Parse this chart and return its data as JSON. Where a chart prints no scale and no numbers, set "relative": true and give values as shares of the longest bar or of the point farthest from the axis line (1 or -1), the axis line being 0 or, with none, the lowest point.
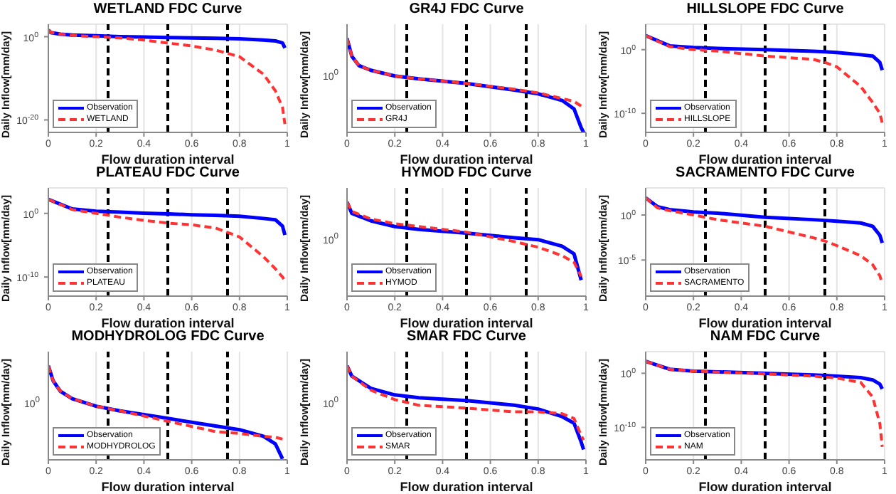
{
  "chart_data": [
    {
      "type": "line",
      "title": "WETLAND FDC Curve",
      "xlabel": "Flow duration interval",
      "ylabel": "Daily Inflow[mm/day]",
      "x": [
        0,
        0.01,
        0.05,
        0.1,
        0.2,
        0.3,
        0.4,
        0.5,
        0.6,
        0.7,
        0.8,
        0.9,
        0.95,
        0.98,
        0.99
      ],
      "log": "y",
      "xlim": [
        0,
        1
      ],
      "xticks": [
        0,
        0.2,
        0.4,
        0.6,
        0.8,
        1
      ],
      "ylim": [
        1e-23,
        1000
      ],
      "yticks": [
        {
          "value": 1e-20,
          "label": "10$^{-20}$"
        },
        {
          "value": 1,
          "label": "10$^{0}$"
        }
      ],
      "grid": true,
      "legend": "bottom left",
      "series": [
        {
          "name": "Observation",
          "color": "#0000ff",
          "line_style": "solid",
          "values": [
            40,
            10,
            4,
            2.5,
            1.6,
            1,
            0.8,
            0.6,
            0.5,
            0.4,
            0.3,
            0.16,
            0.1,
            0.03,
            0.002
          ]
        },
        {
          "name": "WETLAND",
          "color": "#ff3333",
          "line_style": "dashed",
          "values": [
            40,
            10,
            4,
            2,
            1,
            0.5,
            0.16,
            0.03,
            0.006,
            0.0006,
            1.6e-05,
            1e-09,
            1e-13,
            1e-17,
            1e-21
          ]
        }
      ],
      "ref_lines": [
        {
          "axis": "x",
          "value": 0.25,
          "color": "#000000",
          "line_style": "dashed"
        },
        {
          "axis": "x",
          "value": 0.5,
          "color": "#000000",
          "line_style": "dashed"
        },
        {
          "axis": "x",
          "value": 0.75,
          "color": "#000000",
          "line_style": "dashed"
        }
      ]
    },
    {
      "type": "line",
      "title": "GR4J FDC Curve",
      "xlabel": "Flow duration interval",
      "ylabel": "Daily Inflow[mm/day]",
      "x": [
        0,
        0.02,
        0.05,
        0.1,
        0.2,
        0.3,
        0.5,
        0.7,
        0.8,
        0.9,
        0.95,
        0.98,
        0.99
      ],
      "relative": true,
      "xlim": [
        0,
        1
      ],
      "xticks": [
        0,
        0.2,
        0.4,
        0.6,
        0.8,
        1
      ],
      "grid": true,
      "legend": "bottom left",
      "annotations": [
        "10$^{0}$"
      ],
      "series": [
        {
          "name": "Observation",
          "color": "#0000ff",
          "line_style": "solid",
          "values": [
            1,
            0.81,
            0.71,
            0.66,
            0.6,
            0.57,
            0.52,
            0.45,
            0.41,
            0.34,
            0.25,
            0.05,
            0
          ]
        },
        {
          "name": "GR4J",
          "color": "#ff3333",
          "line_style": "dashed",
          "values": [
            1,
            0.81,
            0.71,
            0.66,
            0.6,
            0.57,
            0.52,
            0.46,
            0.42,
            0.36,
            0.33,
            0.28,
            0.28
          ]
        }
      ],
      "ref_lines": [
        {
          "axis": "x",
          "value": 0.25,
          "color": "#000000",
          "line_style": "dashed"
        },
        {
          "axis": "x",
          "value": 0.5,
          "color": "#000000",
          "line_style": "dashed"
        },
        {
          "axis": "x",
          "value": 0.75,
          "color": "#000000",
          "line_style": "dashed"
        }
      ]
    },
    {
      "type": "line",
      "title": "HILLSLOPE FDC Curve",
      "xlabel": "Flow duration interval",
      "ylabel": "Daily Inflow[mm/day]",
      "x": [
        0,
        0.1,
        0.2,
        0.3,
        0.5,
        0.7,
        0.75,
        0.8,
        0.9,
        0.95,
        0.98,
        0.99
      ],
      "log": "y",
      "xlim": [
        0,
        1
      ],
      "xticks": [
        0,
        0.2,
        0.4,
        0.6,
        0.8,
        1
      ],
      "ylim": [
        1e-13,
        10000
      ],
      "yticks": [
        {
          "value": 1e-10,
          "label": "10$^{-10}$"
        },
        {
          "value": 1,
          "label": "10$^{0}$"
        }
      ],
      "grid": true,
      "legend": "bottom left",
      "series": [
        {
          "name": "Observation",
          "color": "#0000ff",
          "line_style": "solid",
          "values": [
            160,
            4,
            2.2,
            1.6,
            1,
            0.56,
            0.45,
            0.35,
            0.16,
            0.1,
            0.01,
            0.0006
          ]
        },
        {
          "name": "HILLSLOPE",
          "color": "#ff3333",
          "line_style": "dashed",
          "values": [
            160,
            3,
            1,
            0.6,
            0.1,
            0.03,
            0.01,
            0.002,
            1.6e-06,
            5e-09,
            1e-10,
            3e-12
          ]
        }
      ],
      "ref_lines": [
        {
          "axis": "x",
          "value": 0.25,
          "color": "#000000",
          "line_style": "dashed"
        },
        {
          "axis": "x",
          "value": 0.5,
          "color": "#000000",
          "line_style": "dashed"
        },
        {
          "axis": "x",
          "value": 0.75,
          "color": "#000000",
          "line_style": "dashed"
        }
      ]
    },
    {
      "type": "line",
      "title": "PLATEAU FDC Curve",
      "xlabel": "Flow duration interval",
      "ylabel": "Daily Inflow[mm/day]",
      "x": [
        0,
        0.1,
        0.2,
        0.3,
        0.4,
        0.5,
        0.6,
        0.7,
        0.8,
        0.9,
        0.95,
        0.98,
        0.99
      ],
      "log": "y",
      "xlim": [
        0,
        1
      ],
      "xticks": [
        0,
        0.2,
        0.4,
        0.6,
        0.8,
        1
      ],
      "ylim": [
        1e-13,
        10000
      ],
      "yticks": [
        {
          "value": 1e-10,
          "label": "10$^{-10}$"
        },
        {
          "value": 1,
          "label": "10$^{0}$"
        }
      ],
      "grid": true,
      "legend": "bottom left",
      "series": [
        {
          "name": "Observation",
          "color": "#0000ff",
          "line_style": "solid",
          "values": [
            160,
            5,
            2.2,
            1.6,
            1.1,
            0.85,
            0.6,
            0.5,
            0.35,
            0.16,
            0.1,
            0.01,
            0.0004
          ]
        },
        {
          "name": "PLATEAU",
          "color": "#ff3333",
          "line_style": "dashed",
          "values": [
            160,
            4,
            1,
            0.25,
            0.08,
            0.03,
            0.016,
            0.005,
            0.0002,
            1.6e-07,
            2e-09,
            1e-10,
            2.5e-11
          ]
        }
      ],
      "ref_lines": [
        {
          "axis": "x",
          "value": 0.25,
          "color": "#000000",
          "line_style": "dashed"
        },
        {
          "axis": "x",
          "value": 0.5,
          "color": "#000000",
          "line_style": "dashed"
        },
        {
          "axis": "x",
          "value": 0.75,
          "color": "#000000",
          "line_style": "dashed"
        }
      ]
    },
    {
      "type": "line",
      "title": "HYMOD FDC Curve",
      "xlabel": "Flow duration interval",
      "ylabel": "Daily Inflow[mm/day]",
      "x": [
        0,
        0.02,
        0.1,
        0.2,
        0.3,
        0.5,
        0.7,
        0.8,
        0.9,
        0.95,
        0.98
      ],
      "relative": true,
      "xlim": [
        0,
        1
      ],
      "xticks": [
        0,
        0.2,
        0.4,
        0.6,
        0.8,
        1
      ],
      "grid": true,
      "legend": "bottom left",
      "annotations": [
        "10$^{0}$"
      ],
      "series": [
        {
          "name": "Observation",
          "color": "#0000ff",
          "line_style": "solid",
          "values": [
            1,
            0.88,
            0.8,
            0.74,
            0.71,
            0.67,
            0.62,
            0.6,
            0.53,
            0.45,
            0.17
          ]
        },
        {
          "name": "HYMOD",
          "color": "#ff3333",
          "line_style": "dashed",
          "values": [
            1,
            0.9,
            0.82,
            0.77,
            0.74,
            0.68,
            0.58,
            0.52,
            0.43,
            0.36,
            0.21
          ]
        }
      ],
      "ref_lines": [
        {
          "axis": "x",
          "value": 0.25,
          "color": "#000000",
          "line_style": "dashed"
        },
        {
          "axis": "x",
          "value": 0.5,
          "color": "#000000",
          "line_style": "dashed"
        },
        {
          "axis": "x",
          "value": 0.75,
          "color": "#000000",
          "line_style": "dashed"
        }
      ]
    },
    {
      "type": "line",
      "title": "SACRAMENTO FDC Curve",
      "xlabel": "Flow duration interval",
      "ylabel": "Daily Inflow[mm/day]",
      "x": [
        0,
        0.05,
        0.1,
        0.2,
        0.3,
        0.5,
        0.7,
        0.75,
        0.8,
        0.9,
        0.95,
        0.98,
        0.99
      ],
      "log": "y",
      "xlim": [
        0,
        1
      ],
      "xticks": [
        0,
        0.2,
        0.4,
        0.6,
        0.8,
        1
      ],
      "ylim": [
        1e-09,
        1000
      ],
      "yticks": [
        {
          "value": 1e-05,
          "label": "10$^{-5}$"
        },
        {
          "value": 1,
          "label": "10$^{0}$"
        }
      ],
      "grid": true,
      "legend": "bottom left",
      "series": [
        {
          "name": "Observation",
          "color": "#0000ff",
          "line_style": "solid",
          "values": [
            80,
            8,
            4,
            2.2,
            1.6,
            0.56,
            0.3,
            0.25,
            0.2,
            0.13,
            0.056,
            0.0056,
            0.0008
          ]
        },
        {
          "name": "SACRAMENTO",
          "color": "#ff3333",
          "line_style": "dashed",
          "values": [
            80,
            6,
            3,
            1,
            0.3,
            0.056,
            0.003,
            0.0013,
            0.0004,
            3e-05,
            3e-06,
            1.8e-07,
            2.5e-08
          ]
        }
      ],
      "ref_lines": [
        {
          "axis": "x",
          "value": 0.25,
          "color": "#000000",
          "line_style": "dashed"
        },
        {
          "axis": "x",
          "value": 0.5,
          "color": "#000000",
          "line_style": "dashed"
        },
        {
          "axis": "x",
          "value": 0.75,
          "color": "#000000",
          "line_style": "dashed"
        }
      ]
    },
    {
      "type": "line",
      "title": "MODHYDROLOG FDC Curve",
      "xlabel": "Flow duration interval",
      "ylabel": "Daily Inflow[mm/day]",
      "x": [
        0,
        0.02,
        0.05,
        0.1,
        0.2,
        0.3,
        0.5,
        0.7,
        0.8,
        0.9,
        0.95,
        0.98
      ],
      "relative": true,
      "xlim": [
        0,
        1
      ],
      "xticks": [
        0,
        0.2,
        0.4,
        0.6,
        0.8,
        1
      ],
      "grid": true,
      "legend": "bottom left",
      "annotations": [
        "10$^{0}$"
      ],
      "series": [
        {
          "name": "Observation",
          "color": "#0000ff",
          "line_style": "solid",
          "values": [
            1,
            0.84,
            0.73,
            0.65,
            0.57,
            0.52,
            0.44,
            0.36,
            0.32,
            0.25,
            0.17,
            0.01
          ]
        },
        {
          "name": "MODHYDROLOG",
          "color": "#ff3333",
          "line_style": "dashed",
          "values": [
            1,
            0.84,
            0.73,
            0.65,
            0.57,
            0.52,
            0.41,
            0.3,
            0.28,
            0.25,
            0.24,
            0.22
          ]
        }
      ],
      "ref_lines": [
        {
          "axis": "x",
          "value": 0.25,
          "color": "#000000",
          "line_style": "dashed"
        },
        {
          "axis": "x",
          "value": 0.5,
          "color": "#000000",
          "line_style": "dashed"
        },
        {
          "axis": "x",
          "value": 0.75,
          "color": "#000000",
          "line_style": "dashed"
        }
      ]
    },
    {
      "type": "line",
      "title": "SMAR FDC Curve",
      "xlabel": "Flow duration interval",
      "ylabel": "Daily Inflow[mm/day]",
      "x": [
        0,
        0.02,
        0.1,
        0.2,
        0.3,
        0.5,
        0.7,
        0.8,
        0.9,
        0.95,
        0.98,
        0.99
      ],
      "relative": true,
      "xlim": [
        0,
        1
      ],
      "xticks": [
        0,
        0.2,
        0.4,
        0.6,
        0.8,
        1
      ],
      "grid": true,
      "legend": "bottom left",
      "annotations": [
        "10$^{0}$"
      ],
      "series": [
        {
          "name": "Observation",
          "color": "#0000ff",
          "line_style": "solid",
          "values": [
            1,
            0.89,
            0.76,
            0.69,
            0.66,
            0.63,
            0.58,
            0.54,
            0.46,
            0.39,
            0.19,
            0.11
          ]
        },
        {
          "name": "SMAR",
          "color": "#ff3333",
          "line_style": "dashed",
          "values": [
            1,
            0.89,
            0.74,
            0.64,
            0.58,
            0.55,
            0.51,
            0.51,
            0.49,
            0.44,
            0.26,
            0.21
          ]
        }
      ],
      "ref_lines": [
        {
          "axis": "x",
          "value": 0.25,
          "color": "#000000",
          "line_style": "dashed"
        },
        {
          "axis": "x",
          "value": 0.5,
          "color": "#000000",
          "line_style": "dashed"
        },
        {
          "axis": "x",
          "value": 0.75,
          "color": "#000000",
          "line_style": "dashed"
        }
      ]
    },
    {
      "type": "line",
      "title": "NAM FDC Curve",
      "xlabel": "Flow duration interval",
      "ylabel": "Daily Inflow[mm/day]",
      "x": [
        0,
        0.1,
        0.2,
        0.5,
        0.7,
        0.75,
        0.8,
        0.9,
        0.95,
        0.98,
        0.99
      ],
      "log": "y",
      "xlim": [
        0,
        1
      ],
      "xticks": [
        0,
        0.2,
        0.4,
        0.6,
        0.8,
        1
      ],
      "ylim": [
        1e-16,
        10000
      ],
      "yticks": [
        {
          "value": 1e-10,
          "label": "10$^{-10}$"
        },
        {
          "value": 1,
          "label": "10$^{0}$"
        }
      ],
      "grid": true,
      "legend": "bottom left",
      "series": [
        {
          "name": "Observation",
          "color": "#0000ff",
          "line_style": "solid",
          "values": [
            160,
            5.6,
            2.5,
            1,
            0.5,
            0.4,
            0.3,
            0.16,
            0.06,
            0.01,
            0.0013
          ]
        },
        {
          "name": "NAM",
          "color": "#ff3333",
          "line_style": "dashed",
          "values": [
            160,
            5.6,
            2.5,
            0.8,
            0.3,
            0.2,
            0.13,
            0.02,
            4e-05,
            5e-10,
            2.5e-14
          ]
        }
      ],
      "ref_lines": [
        {
          "axis": "x",
          "value": 0.25,
          "color": "#000000",
          "line_style": "dashed"
        },
        {
          "axis": "x",
          "value": 0.5,
          "color": "#000000",
          "line_style": "dashed"
        },
        {
          "axis": "x",
          "value": 0.75,
          "color": "#000000",
          "line_style": "dashed"
        }
      ]
    }
  ]
}
